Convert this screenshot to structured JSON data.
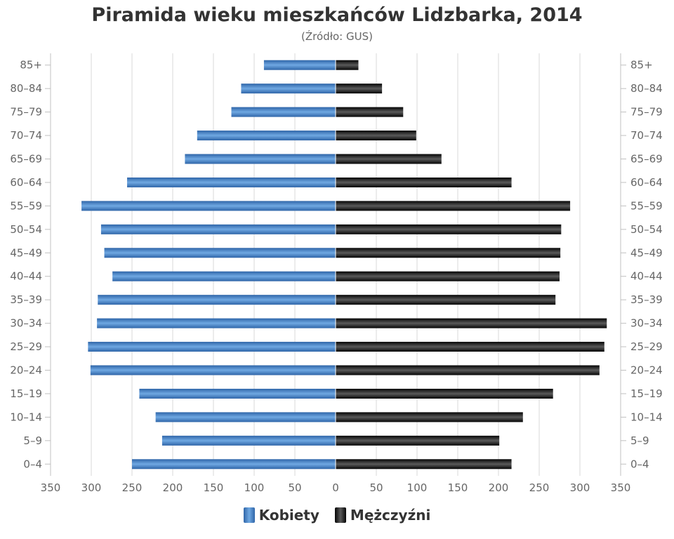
{
  "title": "Piramida wieku mieszkańców Lidzbarka, 2014",
  "subtitle": "(Źródło: GUS)",
  "colors": {
    "female_light": "#6fa8e2",
    "female_dark": "#2f65a8",
    "male_light": "#5a5a5a",
    "male_dark": "#050505",
    "grid": "#d9d9d9",
    "axis": "#c0c0c0"
  },
  "legend": {
    "female_label": "Kobiety",
    "male_label": "Mężczyźni"
  },
  "chart_data": {
    "type": "bar",
    "orientation": "horizontal-pyramid",
    "categories": [
      "85+",
      "80–84",
      "75–79",
      "70–74",
      "65–69",
      "60–64",
      "55–59",
      "50–54",
      "45–49",
      "40–44",
      "35–39",
      "30–34",
      "25–29",
      "20–24",
      "15–19",
      "10–14",
      "5–9",
      "0–4"
    ],
    "series": [
      {
        "name": "Kobiety",
        "side": "left",
        "values": [
          88,
          116,
          128,
          170,
          185,
          256,
          312,
          288,
          284,
          274,
          292,
          293,
          304,
          301,
          241,
          221,
          213,
          250
        ]
      },
      {
        "name": "Mężczyźni",
        "side": "right",
        "values": [
          28,
          57,
          83,
          99,
          130,
          216,
          288,
          277,
          276,
          275,
          270,
          333,
          330,
          324,
          267,
          230,
          201,
          216
        ]
      }
    ],
    "x_ticks": [
      "350",
      "300",
      "250",
      "200",
      "150",
      "100",
      "50",
      "0",
      "50",
      "100",
      "150",
      "200",
      "250",
      "300",
      "350"
    ],
    "xlim": [
      -350,
      350
    ],
    "grid": true,
    "legend_position": "bottom-center"
  }
}
